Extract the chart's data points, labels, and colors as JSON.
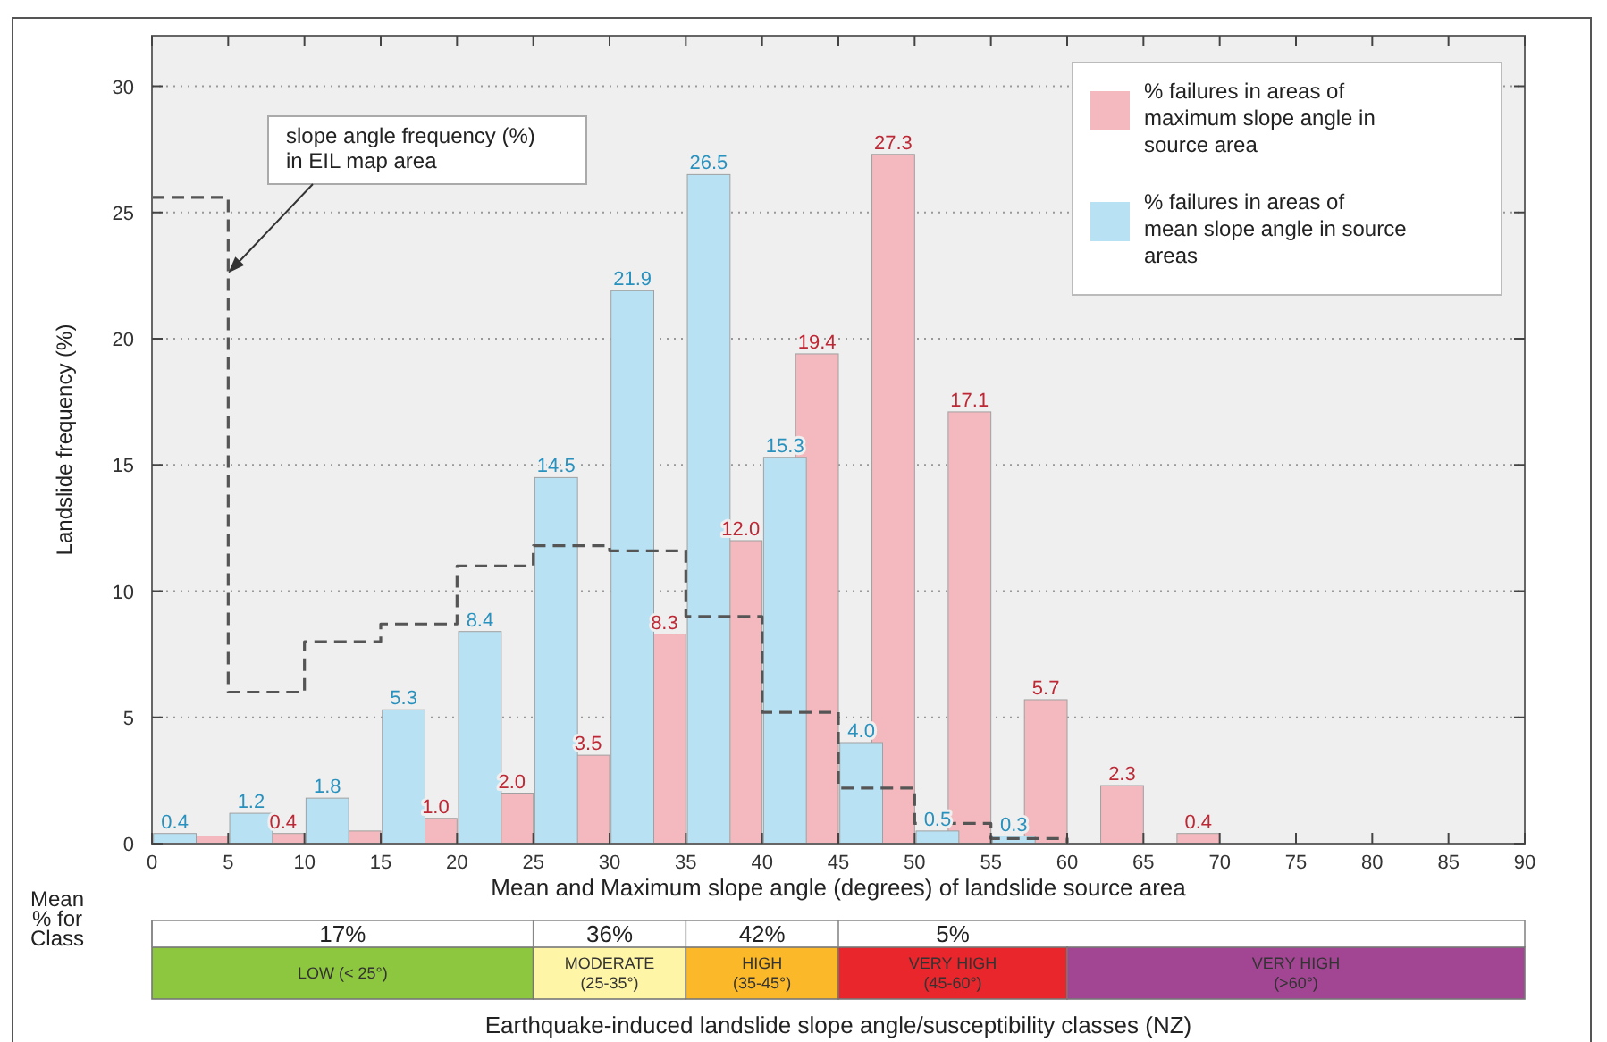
{
  "chart_data": [
    {
      "type": "bar",
      "xlabel": "Mean and Maximum slope angle (degrees) of landslide source area",
      "ylabel": "Landslide frequency (%)",
      "xlim": [
        0,
        90
      ],
      "xticks": [
        0,
        5,
        10,
        15,
        20,
        25,
        30,
        35,
        40,
        45,
        50,
        55,
        60,
        65,
        70,
        75,
        80,
        85,
        90
      ],
      "ylim": [
        0,
        32
      ],
      "yticks": [
        0,
        5,
        10,
        15,
        20,
        25,
        30
      ],
      "grid": "y",
      "legend": "top right",
      "series": [
        {
          "name": "% failures in areas of maximum slope angle in source area",
          "color": "#f4b9be",
          "x": [
            3.6,
            8.6,
            13.6,
            18.6,
            23.6,
            28.6,
            33.6,
            38.6,
            43.6,
            48.6,
            53.6,
            58.6,
            63.6,
            68.6
          ],
          "values": [
            0.3,
            0.4,
            0.5,
            1.0,
            2.0,
            3.5,
            8.3,
            12.0,
            19.4,
            27.3,
            17.1,
            5.7,
            2.3,
            0.4
          ],
          "value_labels": [
            null,
            "0.4",
            null,
            "1.0",
            "2.0",
            "3.5",
            "8.3",
            "12.0",
            "19.4",
            "27.3",
            "17.1",
            "5.7",
            "2.3",
            "0.4"
          ]
        },
        {
          "name": "% failures in areas of mean slope angle in source areas",
          "color": "#b8e2f4",
          "x": [
            1.5,
            6.5,
            11.5,
            16.5,
            21.5,
            26.5,
            31.5,
            36.5,
            41.5,
            46.5,
            51.5,
            56.5
          ],
          "values": [
            0.4,
            1.2,
            1.8,
            5.3,
            8.4,
            14.5,
            21.9,
            26.5,
            15.3,
            4.0,
            0.5,
            0.3
          ],
          "value_labels": [
            "0.4",
            "1.2",
            "1.8",
            "5.3",
            "8.4",
            "14.5",
            "21.9",
            "26.5",
            "15.3",
            "4.0",
            "0.5",
            "0.3"
          ]
        },
        {
          "type": "step",
          "color": "#555555",
          "line_style": "dashed",
          "x": [
            0,
            5,
            10,
            15,
            20,
            25,
            30,
            35,
            40,
            45,
            50,
            55,
            60
          ],
          "values": [
            25.6,
            6.0,
            8.0,
            8.7,
            11.0,
            11.8,
            11.6,
            9.0,
            5.2,
            2.2,
            0.8,
            0.2,
            0
          ]
        }
      ],
      "annotations": [
        {
          "text": "slope angle frequency (%) in EIL map area",
          "x": 5,
          "y": 22.6
        }
      ]
    },
    {
      "type": "bar",
      "orientation": "horizontal",
      "stacked": true,
      "ylabel": "Mean % for Class",
      "xlabel": "Earthquake-induced landslide slope angle/susceptibility classes (NZ)",
      "xlim": [
        0,
        90
      ],
      "tick_labels": false,
      "categories": [
        null
      ],
      "series": [
        {
          "name": "LOW (< 25°)",
          "color": "#8dc63f",
          "values": [
            25
          ]
        },
        {
          "name": "MODERATE (25-35°)",
          "color": "#fff5a6",
          "values": [
            10
          ]
        },
        {
          "name": "HIGH (35-45°)",
          "color": "#fbb829",
          "values": [
            10
          ]
        },
        {
          "name": "VERY HIGH (45-60°)",
          "color": "#e8262b",
          "values": [
            15
          ]
        },
        {
          "name": "VERY HIGH (>60°)",
          "color": "#a24694",
          "values": [
            30
          ]
        }
      ],
      "annotations": [
        "17%",
        "36%",
        "42%",
        "5%"
      ]
    }
  ]
}
